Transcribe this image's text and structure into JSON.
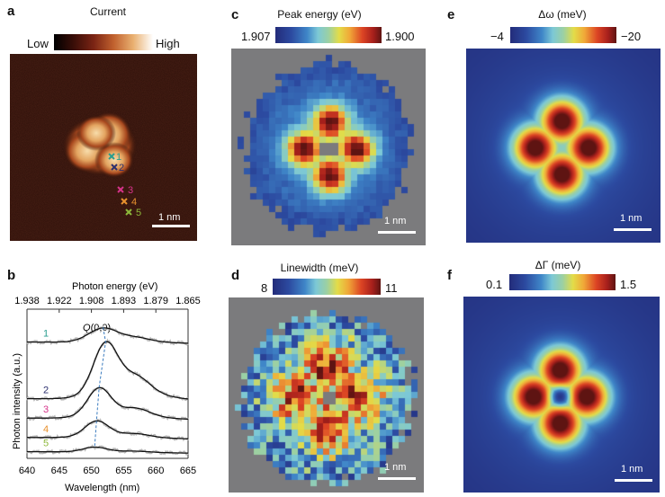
{
  "panels": {
    "a": {
      "label": "a",
      "colorbar": {
        "title": "Current",
        "low": "Low",
        "high": "High"
      },
      "scale_bar": "1 nm",
      "markers": [
        {
          "id": "1",
          "color": "#2a9d8f"
        },
        {
          "id": "2",
          "color": "#2b2f6e"
        },
        {
          "id": "3",
          "color": "#d6338a"
        },
        {
          "id": "4",
          "color": "#e8912e"
        },
        {
          "id": "5",
          "color": "#8db83a"
        }
      ]
    },
    "b": {
      "label": "b"
    },
    "c": {
      "label": "c",
      "colorbar": {
        "title": "Peak energy (eV)",
        "min_label": "1.907",
        "max_label": "1.900"
      },
      "scale_bar": "1 nm"
    },
    "d": {
      "label": "d",
      "colorbar": {
        "title": "Linewidth (meV)",
        "min_label": "8",
        "max_label": "11"
      },
      "scale_bar": "1 nm"
    },
    "e": {
      "label": "e",
      "colorbar": {
        "title": "Δω (meV)",
        "min_label": "−4",
        "max_label": "−20"
      },
      "scale_bar": "1 nm"
    },
    "f": {
      "label": "f",
      "colorbar": {
        "title": "ΔΓ (meV)",
        "min_label": "0.1",
        "max_label": "1.5"
      },
      "scale_bar": "1 nm"
    }
  },
  "chart_data": {
    "type": "line",
    "title": "",
    "xlabel": "Wavelength (nm)",
    "x2label": "Photon energy (eV)",
    "ylabel": "Photon intensity (a.u.)",
    "xlim": [
      640,
      665
    ],
    "xticks": [
      "640",
      "645",
      "650",
      "655",
      "660",
      "665"
    ],
    "x2ticks": [
      "1.938",
      "1.922",
      "1.908",
      "1.893",
      "1.879",
      "1.865"
    ],
    "annotation": "Q(0,0)",
    "grid": false,
    "series": [
      {
        "name": "1",
        "color": "#2a9d8f",
        "offset": 0.78,
        "peak_nm": 651.8,
        "amp": 0.085,
        "width": 2.2,
        "shoulder_amp": 0.02
      },
      {
        "name": "2",
        "color": "#2b2f6e",
        "offset": 0.4,
        "peak_nm": 652.2,
        "amp": 0.33,
        "width": 1.9,
        "shoulder_amp": 0.09
      },
      {
        "name": "3",
        "color": "#d6338a",
        "offset": 0.27,
        "peak_nm": 651.2,
        "amp": 0.18,
        "width": 1.8,
        "shoulder_amp": 0.04
      },
      {
        "name": "4",
        "color": "#e8912e",
        "offset": 0.14,
        "peak_nm": 650.8,
        "amp": 0.1,
        "width": 1.8,
        "shoulder_amp": 0.015
      },
      {
        "name": "5",
        "color": "#8db83a",
        "offset": 0.045,
        "peak_nm": 650.5,
        "amp": 0.03,
        "width": 1.8,
        "shoulder_amp": 0.005
      }
    ],
    "peak_trace_nm": [
      651.8,
      652.2,
      651.2,
      650.8,
      650.5
    ]
  }
}
